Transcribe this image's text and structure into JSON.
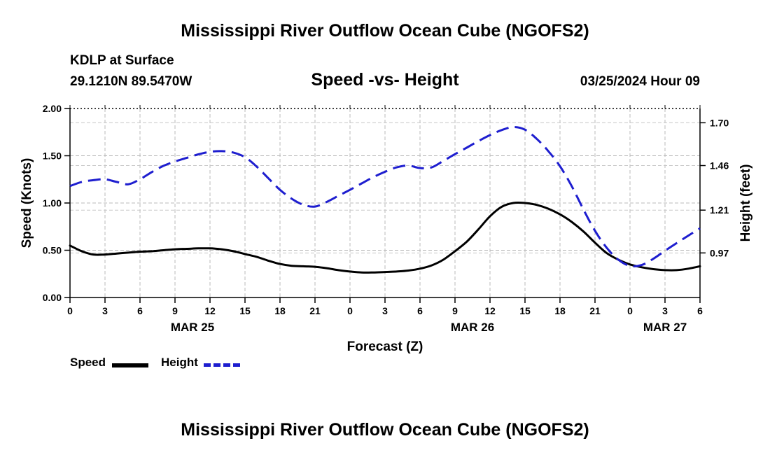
{
  "header": {
    "title": "Mississippi River Outflow Ocean Cube (NGOFS2)",
    "station": "KDLP at Surface",
    "coords": "29.1210N  89.5470W",
    "subtitle": "Speed -vs- Height",
    "datetime": "03/25/2024 Hour 09"
  },
  "footer": {
    "title": "Mississippi River Outflow Ocean Cube (NGOFS2)"
  },
  "legend": {
    "speed": "Speed",
    "height": "Height"
  },
  "chart_data": {
    "type": "line",
    "title": "Speed -vs- Height",
    "xlabel": "Forecast (Z)",
    "ylabel": "Speed (Knots)",
    "y2label": "Height (feet)",
    "ylim": [
      0,
      2
    ],
    "y2lim": [
      0.72,
      1.78
    ],
    "yticks": [
      "0.00",
      "0.50",
      "1.00",
      "1.50",
      "2.00"
    ],
    "yticks_values": [
      0,
      0.5,
      1,
      1.5,
      2
    ],
    "y2ticks": [
      "0.97",
      "1.21",
      "1.46",
      "1.70"
    ],
    "y2ticks_values": [
      0.97,
      1.21,
      1.46,
      1.7
    ],
    "x_hours": [
      0,
      54
    ],
    "xtick_labels": [
      "0",
      "3",
      "6",
      "9",
      "12",
      "15",
      "18",
      "21",
      "0",
      "3",
      "6",
      "9",
      "12",
      "15",
      "18",
      "21",
      "0",
      "3",
      "6"
    ],
    "day_labels": [
      {
        "label": "MAR 25",
        "hour": 10.5
      },
      {
        "label": "MAR 26",
        "hour": 34.5
      },
      {
        "label": "MAR 27",
        "hour": 51
      }
    ],
    "grid": true,
    "series": [
      {
        "name": "Speed",
        "color": "#000000",
        "axis": "left",
        "x": [
          0,
          1,
          2,
          3,
          4,
          5,
          6,
          7,
          8,
          9,
          10,
          11,
          12,
          13,
          14,
          15,
          16,
          17,
          18,
          19,
          20,
          21,
          22,
          23,
          24,
          25,
          26,
          27,
          28,
          29,
          30,
          31,
          32,
          33,
          34,
          35,
          36,
          37,
          38,
          39,
          40,
          41,
          42,
          43,
          44,
          45,
          46,
          47,
          48,
          49,
          50,
          51,
          52,
          53,
          54
        ],
        "values": [
          0.55,
          0.49,
          0.455,
          0.455,
          0.465,
          0.475,
          0.485,
          0.49,
          0.5,
          0.51,
          0.515,
          0.52,
          0.52,
          0.51,
          0.49,
          0.46,
          0.43,
          0.39,
          0.355,
          0.335,
          0.33,
          0.325,
          0.31,
          0.29,
          0.275,
          0.265,
          0.265,
          0.27,
          0.275,
          0.285,
          0.305,
          0.34,
          0.4,
          0.49,
          0.59,
          0.72,
          0.86,
          0.96,
          1.0,
          1.0,
          0.98,
          0.94,
          0.88,
          0.8,
          0.7,
          0.58,
          0.47,
          0.4,
          0.35,
          0.32,
          0.3,
          0.29,
          0.29,
          0.305,
          0.33
        ]
      },
      {
        "name": "Height",
        "color": "#1e1ecf",
        "axis": "right",
        "x": [
          0,
          1,
          2,
          3,
          4,
          5,
          6,
          7,
          8,
          9,
          10,
          11,
          12,
          13,
          14,
          15,
          16,
          17,
          18,
          19,
          20,
          21,
          22,
          23,
          24,
          25,
          26,
          27,
          28,
          29,
          30,
          31,
          32,
          33,
          34,
          35,
          36,
          37,
          38,
          39,
          40,
          41,
          42,
          43,
          44,
          45,
          46,
          47,
          48,
          49,
          50,
          51,
          52,
          53,
          54
        ],
        "values": [
          1.345,
          1.368,
          1.378,
          1.383,
          1.368,
          1.355,
          1.383,
          1.423,
          1.458,
          1.483,
          1.503,
          1.523,
          1.537,
          1.541,
          1.533,
          1.507,
          1.454,
          1.389,
          1.324,
          1.274,
          1.24,
          1.23,
          1.256,
          1.29,
          1.324,
          1.36,
          1.395,
          1.425,
          1.45,
          1.46,
          1.446,
          1.45,
          1.486,
          1.524,
          1.56,
          1.597,
          1.631,
          1.659,
          1.676,
          1.661,
          1.61,
          1.541,
          1.456,
          1.345,
          1.215,
          1.094,
          0.999,
          0.932,
          0.897,
          0.902,
          0.937,
          0.982,
          1.025,
          1.067,
          1.108
        ]
      }
    ]
  }
}
